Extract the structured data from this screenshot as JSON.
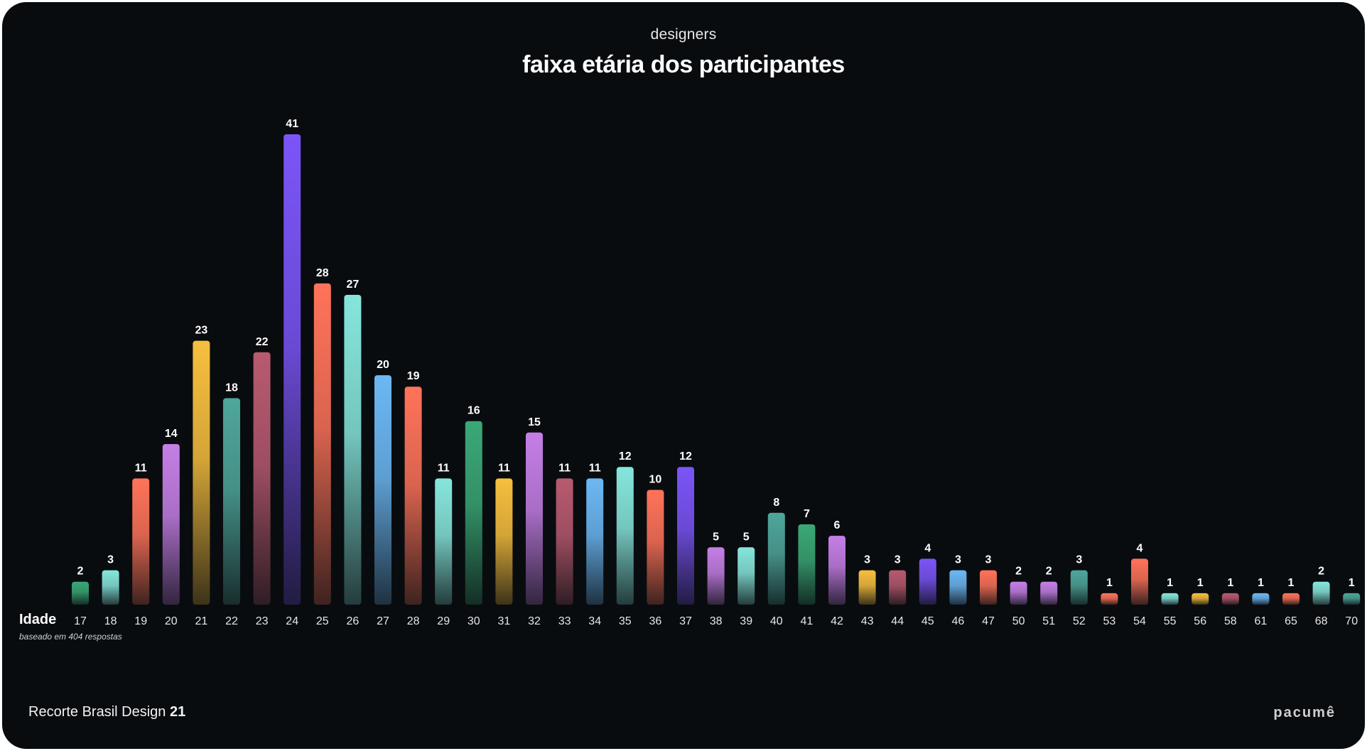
{
  "header": {
    "subtitle": "designers",
    "title": "faixa etária dos participantes"
  },
  "chart_data": {
    "type": "bar",
    "title": "faixa etária dos participantes",
    "subtitle": "designers",
    "xlabel": "Idade",
    "ylabel": "",
    "note": "baseado em 404 respostas",
    "ylim": [
      0,
      41
    ],
    "grid": false,
    "legend": "none",
    "categories": [
      "17",
      "18",
      "19",
      "20",
      "21",
      "22",
      "23",
      "24",
      "25",
      "26",
      "27",
      "28",
      "29",
      "30",
      "31",
      "32",
      "33",
      "34",
      "35",
      "36",
      "37",
      "38",
      "39",
      "40",
      "41",
      "42",
      "43",
      "44",
      "45",
      "46",
      "47",
      "50",
      "51",
      "52",
      "53",
      "54",
      "55",
      "56",
      "58",
      "61",
      "65",
      "68",
      "70"
    ],
    "values": [
      2,
      3,
      11,
      14,
      23,
      18,
      22,
      41,
      28,
      27,
      20,
      19,
      11,
      16,
      11,
      15,
      11,
      11,
      12,
      10,
      12,
      5,
      5,
      8,
      7,
      6,
      3,
      3,
      4,
      3,
      3,
      2,
      2,
      3,
      1,
      4,
      1,
      1,
      1,
      1,
      1,
      2,
      1
    ],
    "colors": [
      "#3aa876",
      "#86e6dc",
      "#ff735a",
      "#c57fe6",
      "#f7bf3e",
      "#4fa69b",
      "#b85a70",
      "#7b55f7",
      "#ff735a",
      "#86e6dc",
      "#6cb8f4",
      "#ff735a",
      "#86e6dc",
      "#3aa876",
      "#f7bf3e",
      "#c57fe6",
      "#b85a70",
      "#6cb8f4",
      "#86e6dc",
      "#ff735a",
      "#7b55f7",
      "#c57fe6",
      "#86e6dc",
      "#4fa69b",
      "#3aa876",
      "#c57fe6",
      "#f7bf3e",
      "#b85a70",
      "#7b55f7",
      "#6cb8f4",
      "#ff735a",
      "#c57fe6",
      "#c57fe6",
      "#4fa69b",
      "#ff735a",
      "#ff735a",
      "#86e6dc",
      "#f7bf3e",
      "#b85a70",
      "#6cb8f4",
      "#ff735a",
      "#86e6dc",
      "#4fa69b"
    ]
  },
  "footer": {
    "brand_prefix": "Recorte Brasil Design ",
    "brand_number": "21",
    "logo": "pacumê"
  }
}
